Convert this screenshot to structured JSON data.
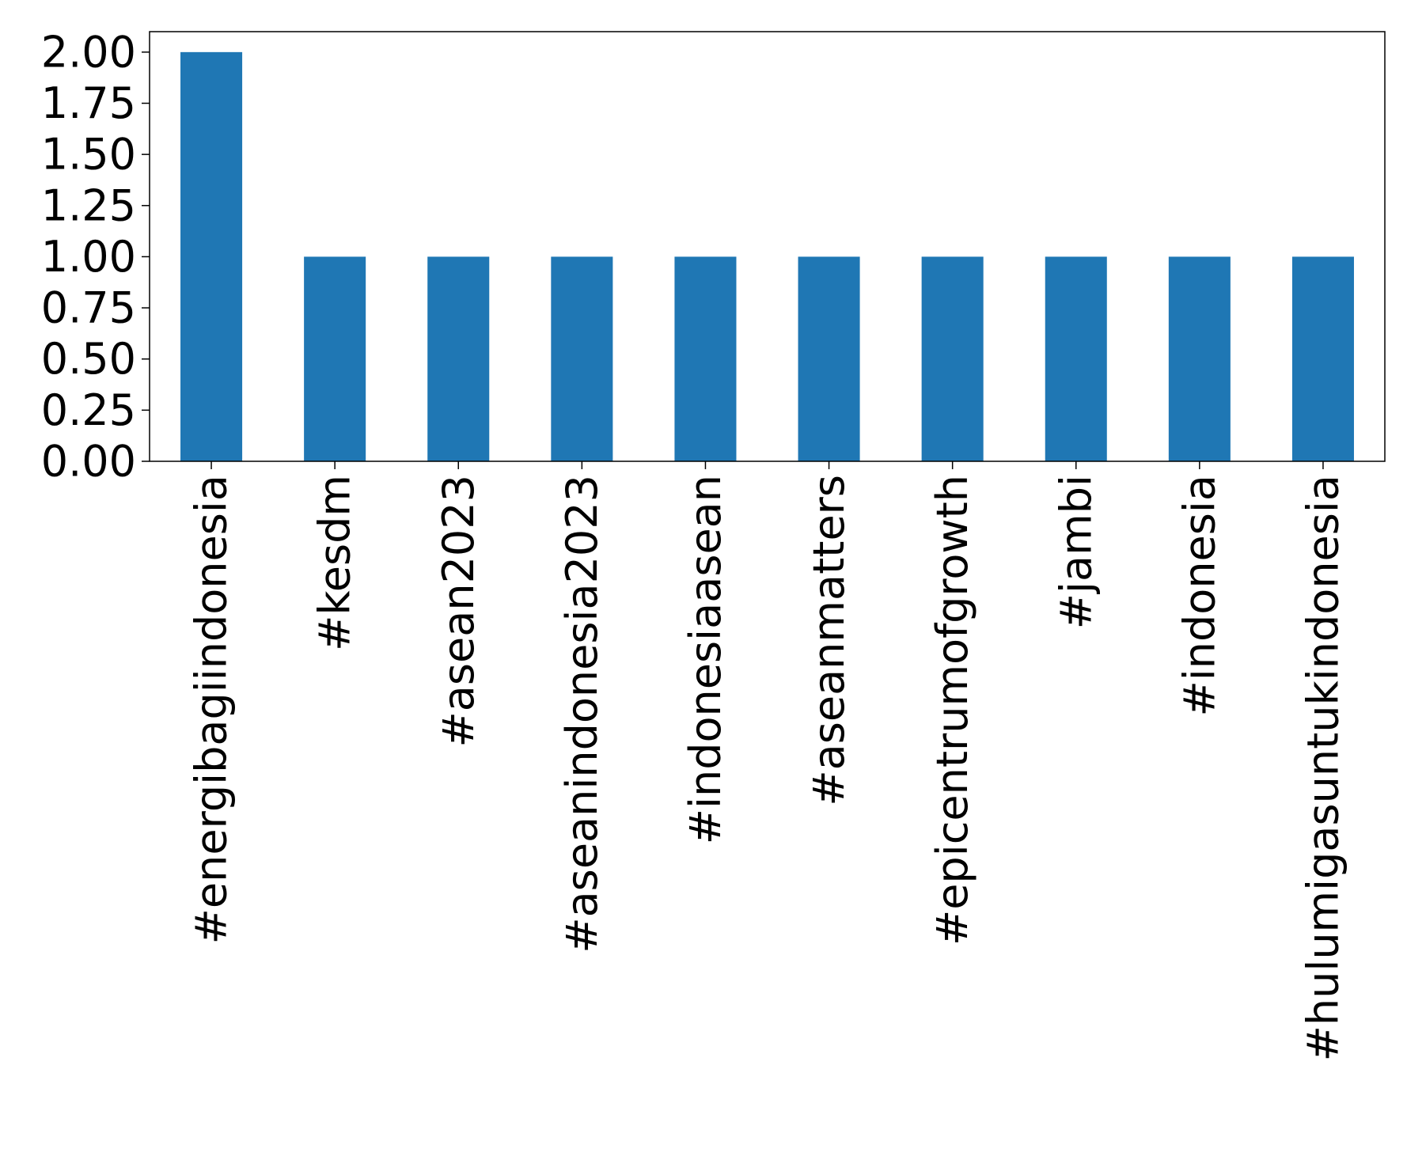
{
  "chart_data": {
    "type": "bar",
    "categories": [
      "#energibagiindonesia",
      "#kesdm",
      "#asean2023",
      "#aseanindonesia2023",
      "#indonesiaasean",
      "#aseanmatters",
      "#epicentrumofgrowth",
      "#jambi",
      "#indonesia",
      "#hulumigasuntukindonesia"
    ],
    "values": [
      2,
      1,
      1,
      1,
      1,
      1,
      1,
      1,
      1,
      1
    ],
    "title": "",
    "xlabel": "",
    "ylabel": "",
    "ylim": [
      0,
      2.1
    ],
    "yticks": [
      0,
      0.25,
      0.5,
      0.75,
      1.0,
      1.25,
      1.5,
      1.75,
      2.0
    ],
    "ytick_labels": [
      "0.00",
      "0.25",
      "0.50",
      "0.75",
      "1.00",
      "1.25",
      "1.50",
      "1.75",
      "2.00"
    ],
    "grid": false,
    "legend": "none",
    "bar_color": "#1f77b4",
    "x_label_rotation": "vertical"
  }
}
